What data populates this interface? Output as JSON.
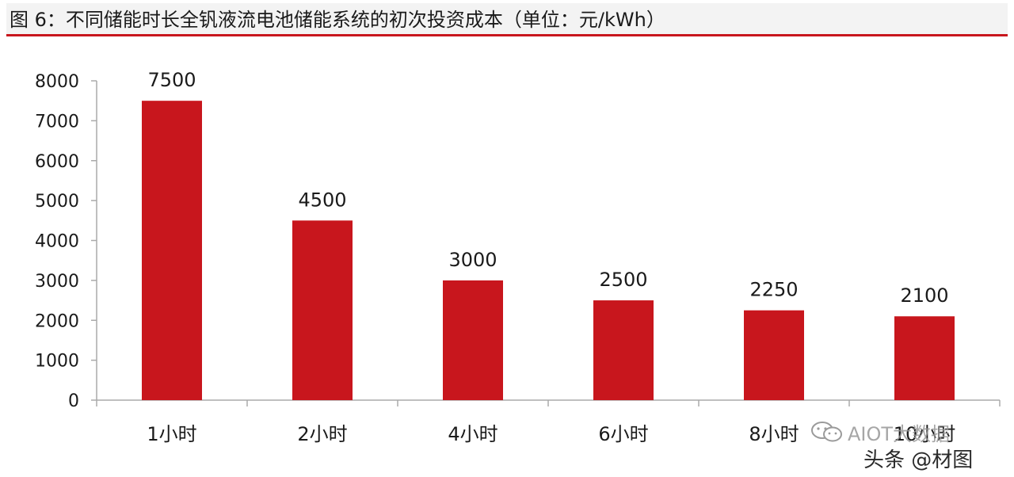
{
  "figure": {
    "title": "图 6：不同储能时长全钒液流电池储能系统的初次投资成本（单位：元/kWh）"
  },
  "chart_data": {
    "type": "bar",
    "categories": [
      "1小时",
      "2小时",
      "4小时",
      "6小时",
      "8小时",
      "10小时"
    ],
    "values": [
      7500,
      4500,
      3000,
      2500,
      2250,
      2100
    ],
    "data_labels": [
      "7500",
      "4500",
      "3000",
      "2500",
      "2250",
      "2100"
    ],
    "ylim": [
      0,
      8000
    ],
    "yticks": [
      0,
      1000,
      2000,
      3000,
      4000,
      5000,
      6000,
      7000,
      8000
    ],
    "grid": false,
    "legend": "none",
    "bar_color": "#c8161d",
    "axis_color": "#aaaaaa"
  },
  "watermark": {
    "brand": "AIOT大数据",
    "source": "头条 @材图",
    "icon": "wechat-icon"
  }
}
